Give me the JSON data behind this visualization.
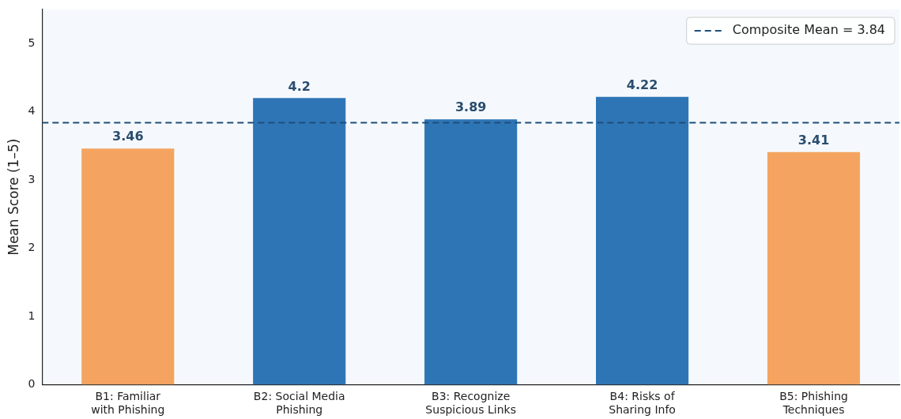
{
  "chart_data": {
    "type": "bar",
    "ylabel": "Mean Score (1–5)",
    "categories": [
      "B1: Familiar\nwith Phishing",
      "B2: Social Media\nPhishing",
      "B3: Recognize\nSuspicious Links",
      "B4: Risks of\nSharing Info",
      "B5: Phishing\nTechniques"
    ],
    "values": [
      3.46,
      4.2,
      3.89,
      4.22,
      3.41
    ],
    "colors": [
      "#f4a460",
      "#2e75b6",
      "#2e75b6",
      "#2e75b6",
      "#f4a460"
    ],
    "data_labels": true,
    "ylim": [
      0,
      5.5
    ],
    "yticks": [
      0,
      1,
      2,
      3,
      4,
      5
    ],
    "grid": false,
    "ref_lines": [
      {
        "axis": "y",
        "value": 3.84,
        "label": "Composite Mean = 3.84",
        "color": "#1f4e79",
        "line_style": "dashed"
      }
    ],
    "legend": "top right"
  }
}
